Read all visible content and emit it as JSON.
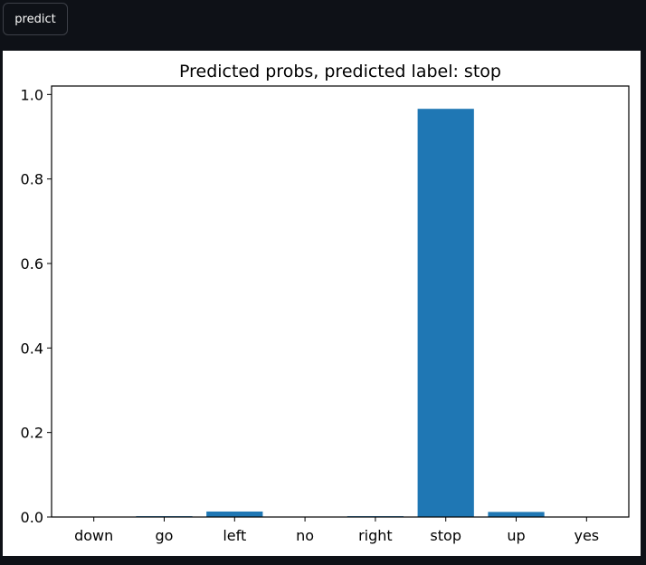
{
  "toolbar": {
    "predict_label": "predict"
  },
  "chart_data": {
    "type": "bar",
    "title": "Predicted probs, predicted label: stop",
    "xlabel": "",
    "ylabel": "",
    "categories": [
      "down",
      "go",
      "left",
      "no",
      "right",
      "stop",
      "up",
      "yes"
    ],
    "values": [
      0.001,
      0.002,
      0.013,
      0.001,
      0.002,
      0.966,
      0.012,
      0.001
    ],
    "ylim": [
      0,
      1.02
    ],
    "yticks": [
      "0.0",
      "0.2",
      "0.4",
      "0.6",
      "0.8",
      "1.0"
    ],
    "bar_color": "#1f77b4",
    "grid": false
  }
}
